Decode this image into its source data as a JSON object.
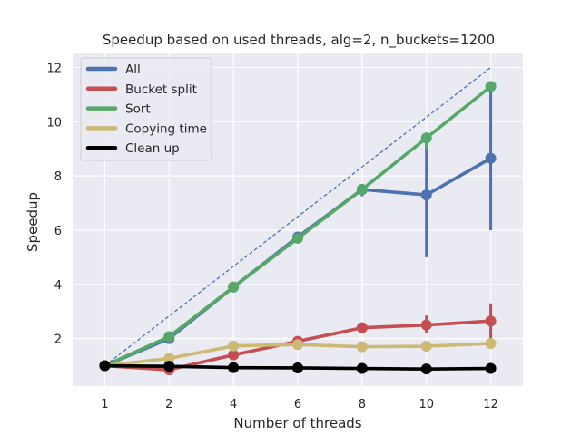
{
  "chart_data": {
    "type": "line",
    "title": "Speedup based on used threads, alg=2, n_buckets=1200",
    "xlabel": "Number of threads",
    "ylabel": "Speedup",
    "categories": [
      "1",
      "2",
      "4",
      "6",
      "8",
      "10",
      "12"
    ],
    "x": [
      1,
      2,
      4,
      6,
      8,
      10,
      12
    ],
    "ylim": [
      0.25,
      12.55
    ],
    "yticks": [
      2,
      4,
      6,
      8,
      10,
      12
    ],
    "grid": true,
    "legend_position": "top-left",
    "ideal": {
      "from": [
        1,
        1
      ],
      "to": [
        12,
        12
      ],
      "style": "dashed",
      "color": "#4c72b0"
    },
    "series": [
      {
        "name": "All",
        "color": "#4c72b0",
        "values": [
          1.0,
          2.0,
          3.9,
          5.75,
          7.5,
          7.3,
          8.65
        ],
        "errors": [
          null,
          null,
          null,
          null,
          [
            7.25,
            7.7
          ],
          [
            5.0,
            9.6
          ],
          [
            6.0,
            11.3
          ]
        ]
      },
      {
        "name": "Bucket split",
        "color": "#c44e52",
        "values": [
          1.0,
          0.85,
          1.4,
          1.9,
          2.4,
          2.5,
          2.65
        ],
        "errors": [
          null,
          null,
          null,
          null,
          null,
          [
            2.2,
            2.85
          ],
          [
            2.0,
            3.3
          ]
        ]
      },
      {
        "name": "Sort",
        "color": "#55a868",
        "values": [
          1.0,
          2.07,
          3.9,
          5.7,
          7.5,
          9.4,
          11.3
        ],
        "errors": [
          null,
          null,
          null,
          null,
          null,
          [
            9.0,
            9.6
          ],
          null
        ]
      },
      {
        "name": "Copying time",
        "color": "#ccb974",
        "values": [
          1.0,
          1.27,
          1.73,
          1.78,
          1.7,
          1.72,
          1.82
        ],
        "errors": [
          null,
          null,
          null,
          null,
          null,
          null,
          null
        ]
      },
      {
        "name": "Clean up",
        "color": "#000000",
        "values": [
          1.0,
          0.98,
          0.93,
          0.92,
          0.9,
          0.88,
          0.9
        ],
        "errors": [
          null,
          null,
          null,
          null,
          null,
          null,
          null
        ]
      }
    ]
  }
}
